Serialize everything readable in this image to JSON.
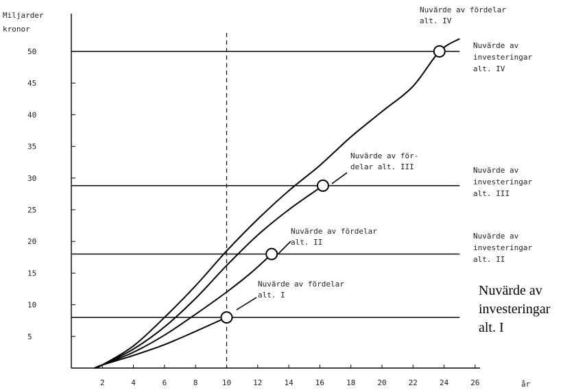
{
  "chart_data": {
    "type": "line",
    "ylabel_lines": [
      "Miljarder",
      "kronor"
    ],
    "xlabel": "år",
    "x_ticks": [
      2,
      4,
      6,
      8,
      10,
      12,
      14,
      16,
      18,
      20,
      22,
      24,
      26
    ],
    "x_tick_labels": [
      "2",
      "4",
      "6",
      "8",
      "10",
      "12",
      "14",
      "16",
      "18",
      "20",
      "22",
      "24",
      "26"
    ],
    "y_ticks": [
      5,
      10,
      15,
      20,
      25,
      30,
      35,
      40,
      45,
      50
    ],
    "y_tick_labels": [
      "5",
      "10",
      "15",
      "20",
      "25",
      "30",
      "35",
      "40",
      "45",
      "50"
    ],
    "xlim": [
      0,
      28
    ],
    "ylim": [
      0,
      52
    ],
    "grid": false,
    "reference_x": 10,
    "curves": [
      {
        "label_lines": [
          "Nuvärde av fördelar",
          "alt. I"
        ],
        "points": [
          [
            1.5,
            0
          ],
          [
            2,
            0.5
          ],
          [
            4,
            2
          ],
          [
            6,
            3.7
          ],
          [
            8,
            5.8
          ],
          [
            10,
            8
          ]
        ],
        "intersection": [
          10,
          8
        ]
      },
      {
        "label_lines": [
          "Nuvärde av fördelar",
          "alt. II"
        ],
        "points": [
          [
            1.5,
            0
          ],
          [
            2,
            0.5
          ],
          [
            4,
            2.5
          ],
          [
            6,
            5.2
          ],
          [
            8,
            8.5
          ],
          [
            10,
            12
          ],
          [
            11.5,
            14.9
          ],
          [
            12.9,
            18
          ]
        ],
        "intersection": [
          12.9,
          18
        ]
      },
      {
        "label_lines": [
          "Nuvärde av för-",
          "delar alt. III"
        ],
        "points": [
          [
            1.5,
            0
          ],
          [
            2,
            0.5
          ],
          [
            4,
            3
          ],
          [
            6,
            6.5
          ],
          [
            8,
            11
          ],
          [
            10,
            16.2
          ],
          [
            12,
            21
          ],
          [
            14,
            25
          ],
          [
            16.2,
            28.8
          ]
        ],
        "intersection": [
          16.2,
          28.8
        ]
      },
      {
        "label_lines": [
          "Nuvärde av fördelar",
          "alt. IV"
        ],
        "points": [
          [
            1.5,
            0
          ],
          [
            2,
            0.5
          ],
          [
            4,
            3.5
          ],
          [
            6,
            8
          ],
          [
            8,
            13
          ],
          [
            10,
            18.5
          ],
          [
            12,
            23.5
          ],
          [
            14,
            28
          ],
          [
            16,
            32
          ],
          [
            18,
            36.5
          ],
          [
            20,
            40.5
          ],
          [
            22,
            44.5
          ],
          [
            23.7,
            50
          ],
          [
            25,
            52
          ]
        ],
        "intersection": [
          23.7,
          50
        ]
      }
    ],
    "investment_lines": [
      {
        "y": 8,
        "x_end": 25,
        "label_lines": [
          "Nuvärde av",
          "investeringar",
          "alt. I"
        ],
        "label_style": "serif"
      },
      {
        "y": 18,
        "x_end": 25,
        "label_lines": [
          "Nuvärde av",
          "investeringar",
          "alt. II"
        ],
        "label_style": "mono"
      },
      {
        "y": 28.8,
        "x_end": 25,
        "label_lines": [
          "Nuvärde av",
          "investeringar",
          "alt. III"
        ],
        "label_style": "mono"
      },
      {
        "y": 50,
        "x_end": 25,
        "label_lines": [
          "Nuvärde av",
          "investeringar",
          "alt. IV"
        ],
        "label_style": "mono"
      }
    ]
  }
}
